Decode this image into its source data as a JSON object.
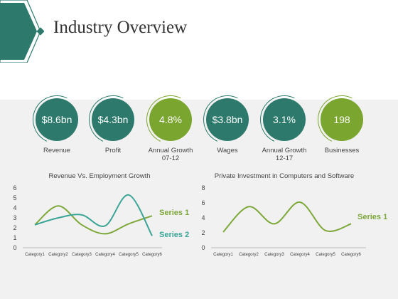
{
  "page": {
    "title": "Industry Overview"
  },
  "colors": {
    "teal": "#2d7a6c",
    "green": "#7aa52e",
    "teal_line": "#3aa596",
    "green_line": "#7ea83a"
  },
  "kpis": [
    {
      "value": "$8.6bn",
      "label": "Revenue",
      "color": "#2d7a6c"
    },
    {
      "value": "$4.3bn",
      "label": "Profit",
      "color": "#2d7a6c"
    },
    {
      "value": "4.8%",
      "label": "Annual Growth 07-12",
      "color": "#7aa52e"
    },
    {
      "value": "$3.8bn",
      "label": "Wages",
      "color": "#2d7a6c"
    },
    {
      "value": "3.1%",
      "label": "Annual Growth 12-17",
      "color": "#2d7a6c"
    },
    {
      "value": "198",
      "label": "Businesses",
      "color": "#7aa52e"
    }
  ],
  "chart_data": [
    {
      "type": "line",
      "title": "Revenue Vs. Employment Growth",
      "categories": [
        "Category1",
        "Category2",
        "Category3",
        "Category4",
        "Category5",
        "Category6"
      ],
      "ylim": [
        0,
        6
      ],
      "yticks": [
        0,
        1,
        2,
        3,
        4,
        5,
        6
      ],
      "grid": false,
      "series": [
        {
          "name": "Series 1",
          "color": "#7ea83a",
          "values": [
            2.3,
            4.2,
            2.3,
            1.4,
            2.4,
            3.2
          ]
        },
        {
          "name": "Series 2",
          "color": "#3aa596",
          "values": [
            2.3,
            3.0,
            3.3,
            2.2,
            5.3,
            1.2
          ]
        }
      ]
    },
    {
      "type": "line",
      "title": "Private Investment in Computers and Software",
      "categories": [
        "Category1",
        "Category2",
        "Category3",
        "Category4",
        "Category5",
        "Category6"
      ],
      "ylim": [
        0,
        8
      ],
      "yticks": [
        0,
        2,
        4,
        6,
        8
      ],
      "grid": false,
      "series": [
        {
          "name": "Series 1",
          "color": "#7ea83a",
          "values": [
            2.1,
            5.5,
            3.2,
            6.1,
            2.3,
            3.2
          ]
        }
      ]
    }
  ]
}
